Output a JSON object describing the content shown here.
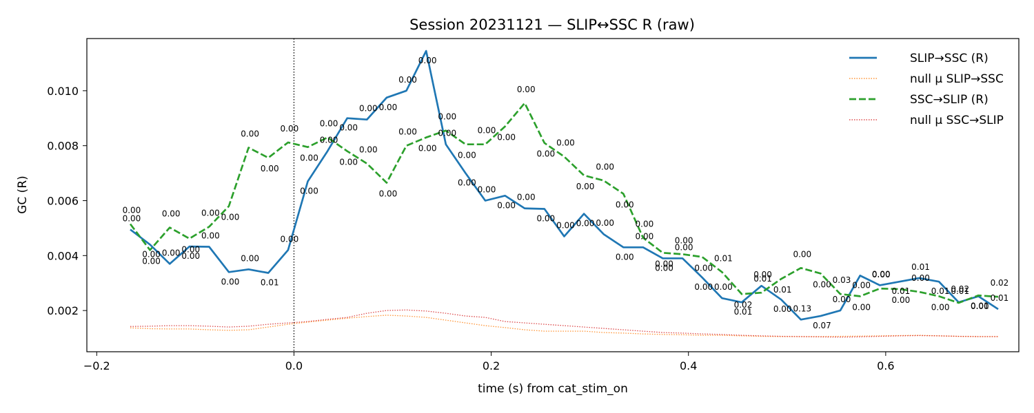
{
  "chart_data": {
    "type": "line",
    "title": "Session 20231121 — SLIP↔SSC R (raw)",
    "xlabel": "time (s) from cat_stim_on",
    "ylabel": "GC (R)",
    "xlim": [
      -0.21,
      0.735
    ],
    "ylim": [
      0.0005,
      0.0119
    ],
    "xticks": [
      -0.2,
      0.0,
      0.2,
      0.4,
      0.6
    ],
    "xtick_labels": [
      "−0.2",
      "0.0",
      "0.2",
      "0.4",
      "0.6"
    ],
    "yticks": [
      0.002,
      0.004,
      0.006,
      0.008,
      0.01
    ],
    "ytick_labels": [
      "0.002",
      "0.004",
      "0.006",
      "0.008",
      "0.010"
    ],
    "vline_x": 0.0,
    "grid": false,
    "legend_position": "top-right",
    "x": [
      -0.166,
      -0.146,
      -0.126,
      -0.106,
      -0.086,
      -0.066,
      -0.046,
      -0.026,
      -0.006,
      0.014,
      0.034,
      0.054,
      0.074,
      0.094,
      0.114,
      0.134,
      0.154,
      0.174,
      0.194,
      0.214,
      0.234,
      0.254,
      0.274,
      0.294,
      0.314,
      0.334,
      0.354,
      0.374,
      0.394,
      0.414,
      0.434,
      0.454,
      0.474,
      0.494,
      0.514,
      0.534,
      0.554,
      0.574,
      0.594,
      0.614,
      0.634,
      0.654,
      0.674,
      0.694,
      0.714
    ],
    "series": [
      {
        "name": "SLIP→SSC (R)",
        "color": "#1f77b4",
        "style": "solid",
        "values": [
          0.00495,
          0.0044,
          0.0037,
          0.00433,
          0.00432,
          0.0034,
          0.0035,
          0.00337,
          0.0042,
          0.0067,
          0.0078,
          0.009,
          0.00895,
          0.00975,
          0.01,
          0.01145,
          0.00805,
          0.007,
          0.006,
          0.00618,
          0.00572,
          0.0057,
          0.0047,
          0.00552,
          0.00478,
          0.0043,
          0.0043,
          0.0039,
          0.0039,
          0.0032,
          0.00245,
          0.0023,
          0.0029,
          0.0024,
          0.00167,
          0.0018,
          0.002,
          0.00327,
          0.00292,
          0.00305,
          0.00318,
          0.00305,
          0.0023,
          0.00252,
          0.00205
        ],
        "labels": [
          "0.00",
          "0.00",
          "0.00",
          "0.00",
          "0.00",
          "0.00",
          "0.00",
          "0.01",
          "0.00",
          "0.00",
          "0.00",
          "0.00",
          "0.00",
          "0.00",
          "0.00",
          "0.00",
          "0.00",
          "0.00",
          "0.00",
          "0.00",
          "0.00",
          "0.00",
          "0.00",
          "0.00",
          "0.00",
          "0.00",
          "0.00",
          "0.00",
          "0.00",
          "0.00",
          "0.00",
          "0.01",
          "0.00",
          "0.00",
          "0.13",
          "0.07",
          "0.00",
          "0.00",
          "0.00",
          "0.01",
          "0.01",
          "0.01",
          "0.01",
          "0.01",
          "0.01"
        ]
      },
      {
        "name": "null μ SLIP→SSC",
        "color": "#ff7f0e",
        "style": "dotted",
        "values": [
          0.00137,
          0.00134,
          0.00133,
          0.00133,
          0.0013,
          0.00128,
          0.0013,
          0.0014,
          0.0015,
          0.00158,
          0.00165,
          0.00172,
          0.00178,
          0.00183,
          0.0018,
          0.00175,
          0.00165,
          0.00155,
          0.00145,
          0.00138,
          0.0013,
          0.00125,
          0.00125,
          0.00125,
          0.0012,
          0.00118,
          0.00115,
          0.00113,
          0.00112,
          0.0011,
          0.0011,
          0.00108,
          0.00106,
          0.00105,
          0.00105,
          0.00105,
          0.00106,
          0.00107,
          0.00108,
          0.00109,
          0.0011,
          0.00108,
          0.00106,
          0.00105,
          0.00105
        ]
      },
      {
        "name": "SSC→SLIP (R)",
        "color": "#2ca02c",
        "style": "dashed",
        "values": [
          0.00515,
          0.0042,
          0.00502,
          0.00462,
          0.00505,
          0.0058,
          0.00793,
          0.00756,
          0.00812,
          0.00795,
          0.0083,
          0.0078,
          0.00735,
          0.00665,
          0.008,
          0.0083,
          0.00855,
          0.00805,
          0.00805,
          0.0087,
          0.00955,
          0.0081,
          0.0076,
          0.00692,
          0.00673,
          0.00625,
          0.00465,
          0.0041,
          0.00405,
          0.00395,
          0.0034,
          0.0026,
          0.00265,
          0.00315,
          0.00355,
          0.00335,
          0.0026,
          0.00252,
          0.0028,
          0.00278,
          0.00268,
          0.00252,
          0.00228,
          0.00255,
          0.0025
        ],
        "labels": [
          "0.00",
          "0.00",
          "0.00",
          "0.00",
          "0.00",
          "0.00",
          "0.00",
          "0.00",
          "0.00",
          "0.00",
          "0.00",
          "0.00",
          "0.00",
          "0.00",
          "0.00",
          "0.00",
          "0.00",
          "0.00",
          "0.00",
          "0.00",
          "0.00",
          "0.00",
          "0.00",
          "0.00",
          "0.00",
          "0.00",
          "0.00",
          "0.00",
          "0.00",
          "0.00",
          "0.01",
          "0.02",
          "0.01",
          "0.01",
          "0.00",
          "0.00",
          "0.03",
          "0.00",
          "0.00",
          "0.00",
          "0.00",
          "0.00",
          "0.02",
          "0.00",
          "0.02"
        ]
      },
      {
        "name": "null μ SSC→SLIP",
        "color": "#d62728",
        "style": "dotted",
        "values": [
          0.00142,
          0.00143,
          0.00145,
          0.00145,
          0.00143,
          0.0014,
          0.00143,
          0.0015,
          0.00155,
          0.0016,
          0.00168,
          0.00175,
          0.0019,
          0.002,
          0.00202,
          0.00198,
          0.0019,
          0.0018,
          0.00175,
          0.0016,
          0.00155,
          0.0015,
          0.00145,
          0.0014,
          0.00135,
          0.0013,
          0.00125,
          0.0012,
          0.00118,
          0.00115,
          0.00113,
          0.0011,
          0.00108,
          0.00106,
          0.00105,
          0.00104,
          0.00103,
          0.00104,
          0.00106,
          0.00108,
          0.00109,
          0.00108,
          0.00106,
          0.00105,
          0.00105
        ]
      }
    ]
  }
}
